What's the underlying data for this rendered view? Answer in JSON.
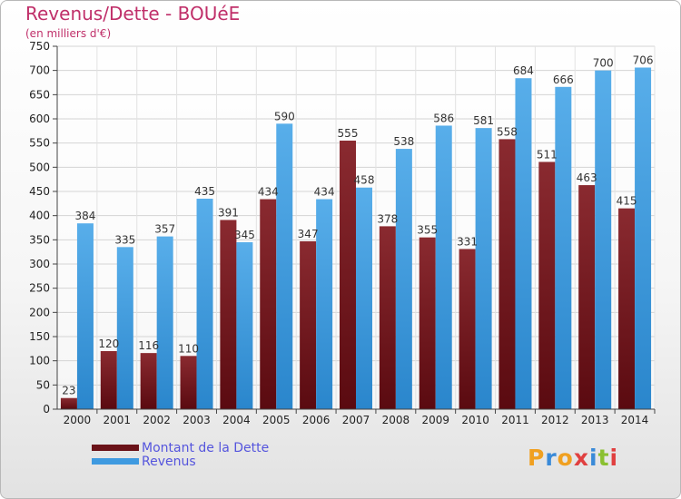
{
  "title": "Revenus/Dette - BOUéE",
  "subtitle": "(en milliers d'€)",
  "colors": {
    "debt": "#7a1a1f",
    "revenue": "#3f9ae0",
    "title": "#c0306a",
    "legend": "#5555dd"
  },
  "chart_data": {
    "type": "bar",
    "categories": [
      "2000",
      "2001",
      "2002",
      "2003",
      "2004",
      "2005",
      "2006",
      "2007",
      "2008",
      "2009",
      "2010",
      "2011",
      "2012",
      "2013",
      "2014"
    ],
    "series": [
      {
        "name": "Montant de la Dette",
        "values": [
          23,
          120,
          116,
          110,
          391,
          434,
          347,
          555,
          378,
          355,
          331,
          558,
          511,
          463,
          415
        ]
      },
      {
        "name": "Revenus",
        "values": [
          384,
          335,
          357,
          435,
          345,
          590,
          434,
          458,
          538,
          586,
          581,
          684,
          666,
          700,
          706
        ]
      }
    ],
    "ylim": [
      0,
      750
    ],
    "yticks": [
      0,
      50,
      100,
      150,
      200,
      250,
      300,
      350,
      400,
      450,
      500,
      550,
      600,
      650,
      700,
      750
    ],
    "grid": true,
    "legend": "bottom-left"
  },
  "legend": {
    "debt_label": "Montant de la Dette",
    "revenue_label": "Revenus"
  },
  "logo": {
    "letters": [
      "P",
      "r",
      "o",
      "x",
      "i",
      "t",
      "i"
    ],
    "colors": [
      "#f0a020",
      "#3a8ad8",
      "#f0a020",
      "#e04040",
      "#3a8ad8",
      "#8ac030",
      "#e04040"
    ]
  }
}
